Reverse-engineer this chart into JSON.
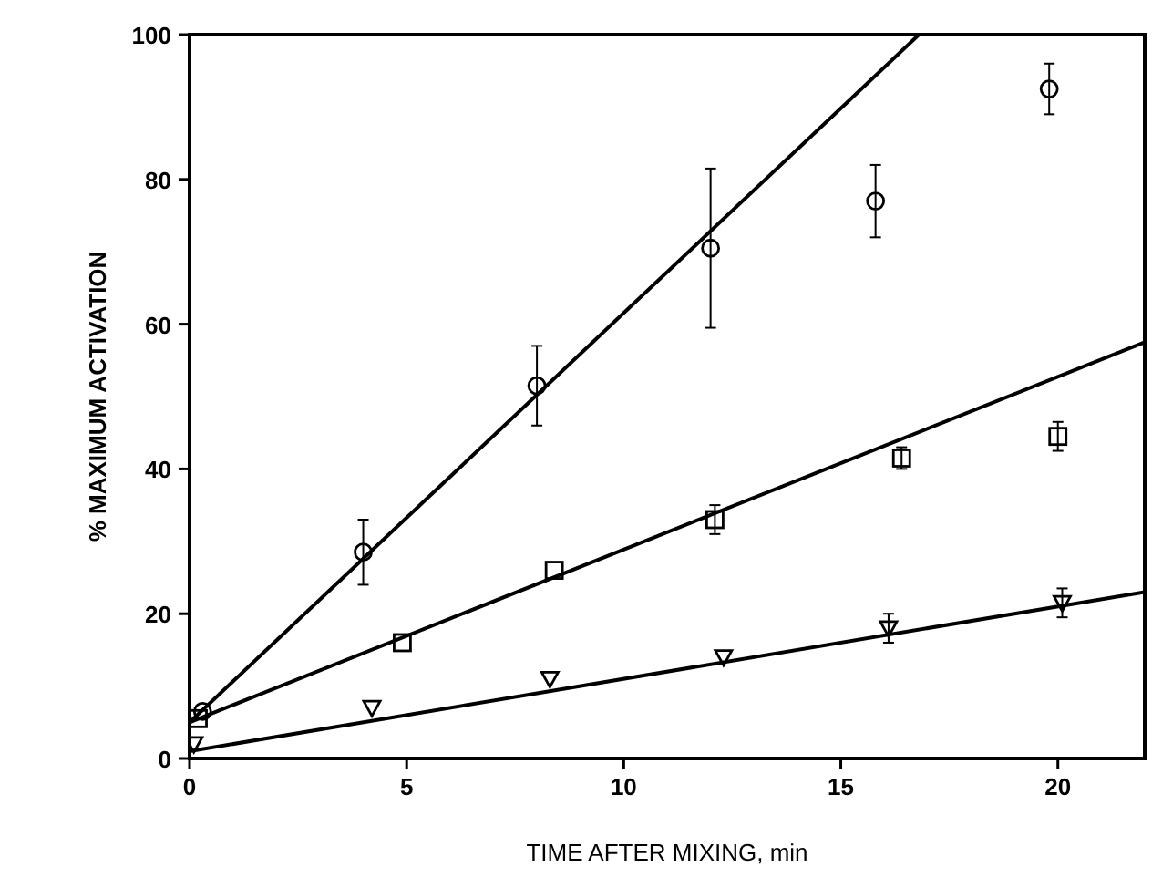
{
  "chart_data": {
    "type": "scatter",
    "xlabel": "TIME AFTER MIXING, min",
    "ylabel": "% MAXIMUM ACTIVATION",
    "xlim": [
      0,
      22
    ],
    "ylim": [
      0,
      100
    ],
    "xticks": [
      0,
      5,
      10,
      15,
      20
    ],
    "yticks": [
      0,
      20,
      40,
      60,
      80,
      100
    ],
    "grid": false,
    "series": [
      {
        "marker": "circle",
        "color": "#000000",
        "x": [
          0.3,
          4,
          8,
          12,
          15.8,
          19.8
        ],
        "values": [
          6.5,
          28.5,
          51.5,
          70.5,
          77,
          92.5
        ],
        "errors": [
          null,
          4.5,
          5.5,
          11,
          5,
          3.5
        ]
      },
      {
        "marker": "square",
        "color": "#000000",
        "x": [
          0.2,
          4.9,
          8.4,
          12.1,
          16.4,
          20
        ],
        "values": [
          5.5,
          16,
          26,
          33,
          41.5,
          44.5
        ],
        "errors": [
          null,
          null,
          null,
          2,
          1.5,
          2
        ]
      },
      {
        "marker": "triangle",
        "color": "#000000",
        "x": [
          0.1,
          4.2,
          8.3,
          12.3,
          16.1,
          20.1
        ],
        "values": [
          2,
          7,
          11,
          14,
          18,
          21.5
        ],
        "errors": [
          null,
          null,
          null,
          null,
          2,
          2
        ]
      },
      {
        "type": "line",
        "marker": "none",
        "line_style": "solid",
        "color": "#000000",
        "x": [
          0,
          16.8
        ],
        "values": [
          5,
          100
        ]
      },
      {
        "type": "line",
        "marker": "none",
        "line_style": "solid",
        "color": "#000000",
        "x": [
          0,
          22
        ],
        "values": [
          5,
          57.5
        ]
      },
      {
        "type": "line",
        "marker": "none",
        "line_style": "solid",
        "color": "#000000",
        "x": [
          0,
          22
        ],
        "values": [
          1,
          23
        ]
      }
    ]
  }
}
